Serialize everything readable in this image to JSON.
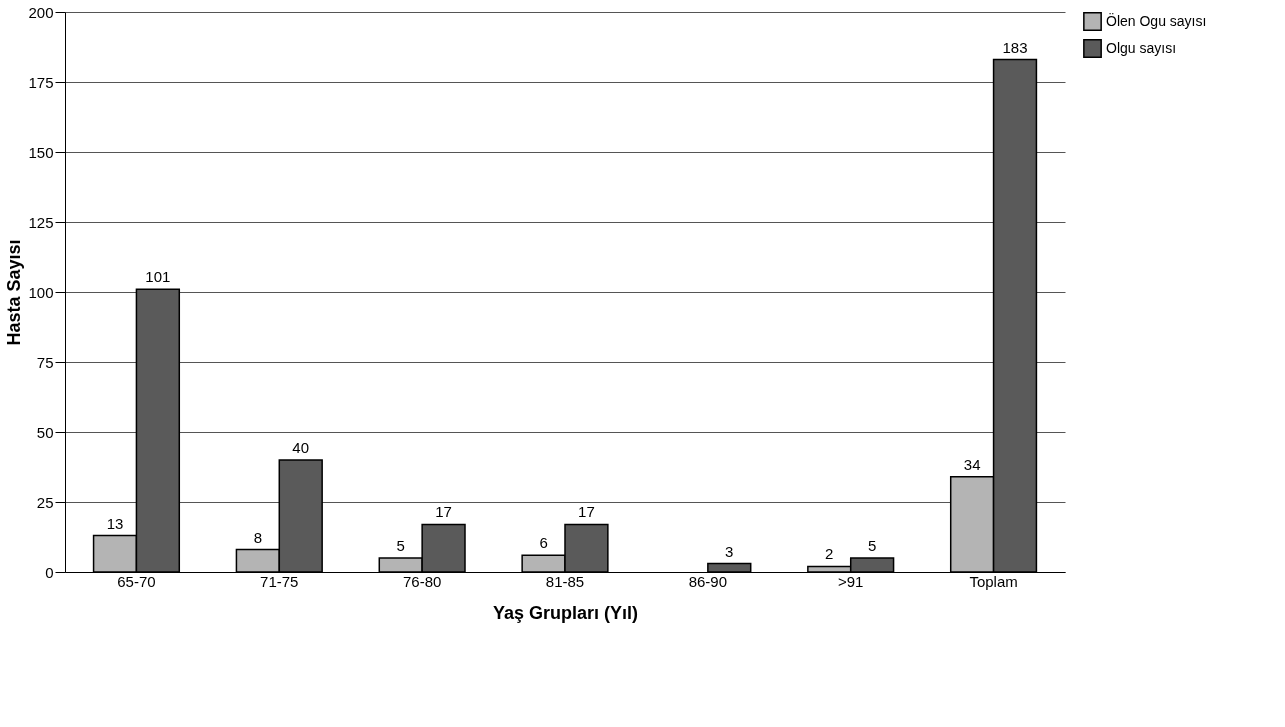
{
  "chart_data": {
    "type": "bar",
    "xlabel": "Yaş Grupları (Yıl)",
    "ylabel": "Hasta Sayısı",
    "categories": [
      "65-70",
      "71-75",
      "76-80",
      "81-85",
      "86-90",
      ">91",
      "Toplam"
    ],
    "series": [
      {
        "name": "Ölen Ogu sayısı",
        "color": "#b4b4b4",
        "values": [
          13,
          8,
          5,
          6,
          null,
          2,
          34
        ]
      },
      {
        "name": "Olgu sayısı",
        "color": "#5a5a5a",
        "values": [
          101,
          40,
          17,
          17,
          3,
          5,
          183
        ]
      }
    ],
    "ylim": [
      0,
      200
    ],
    "yticks": [
      0,
      25,
      50,
      75,
      100,
      125,
      150,
      175,
      200
    ],
    "grid": "y",
    "legend": "top right",
    "data_labels": true
  }
}
